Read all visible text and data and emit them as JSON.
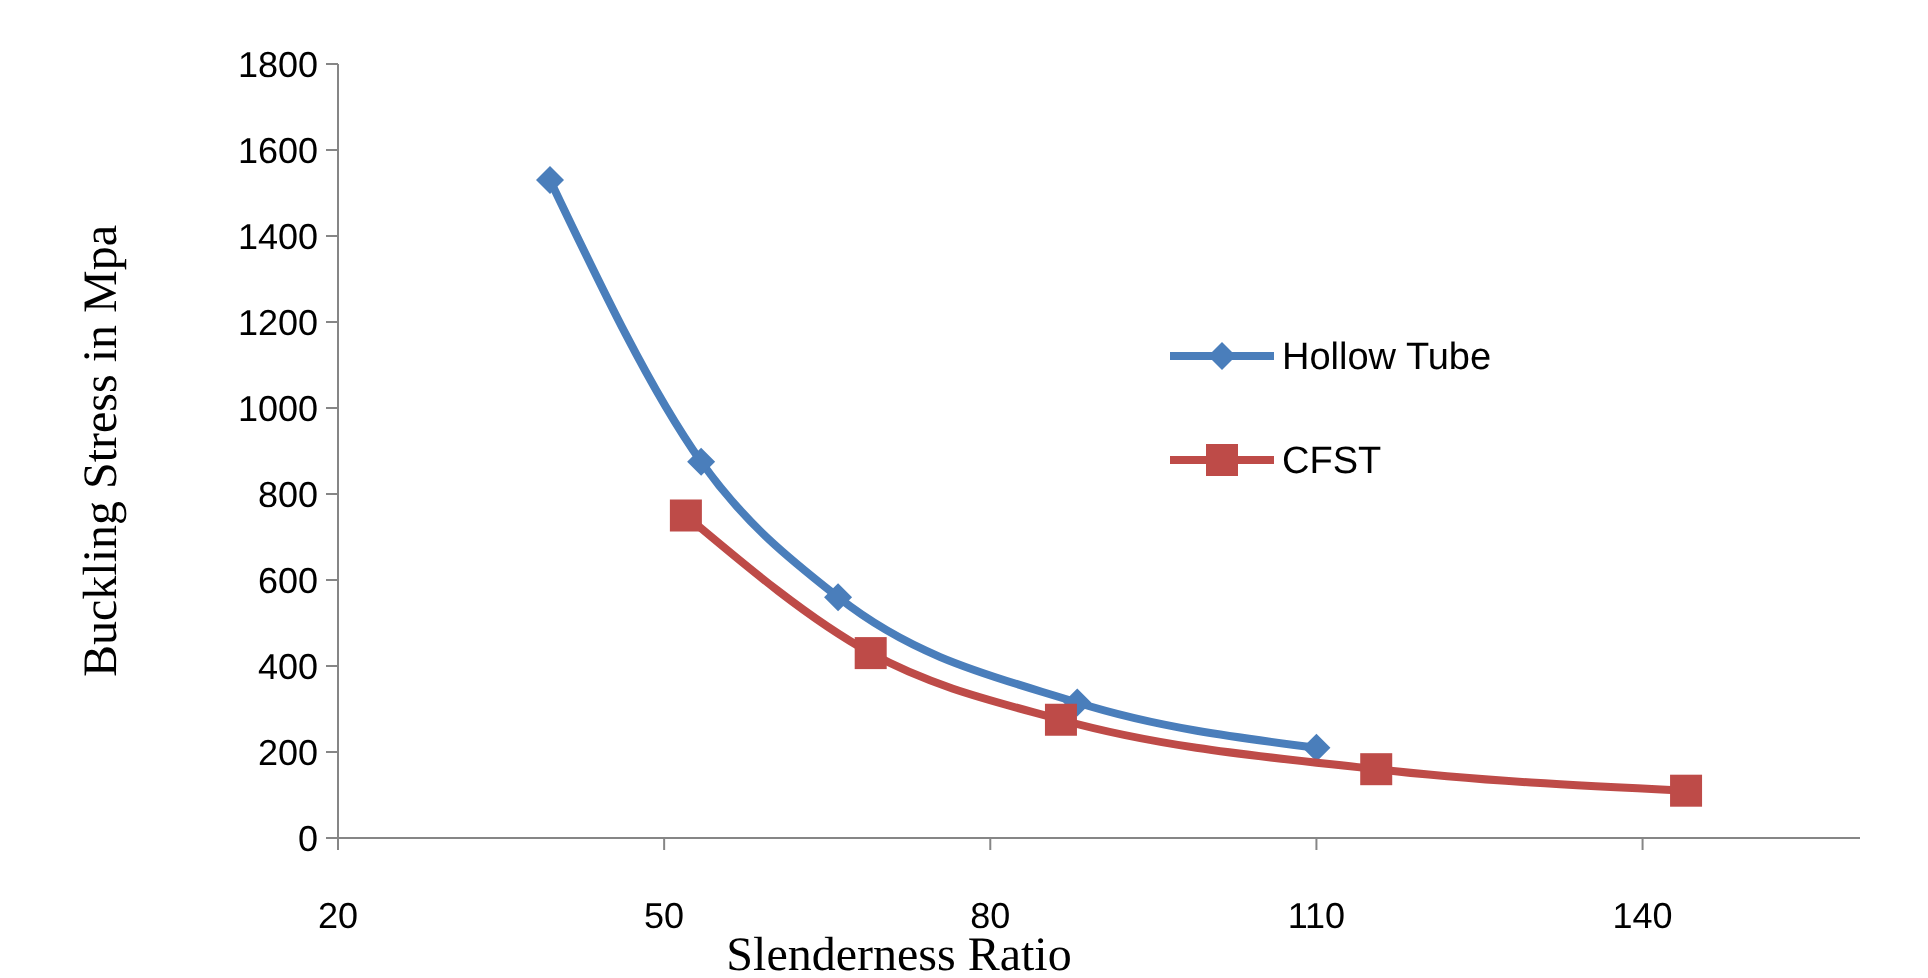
{
  "chart_data": {
    "type": "line",
    "xlabel": "Slenderness Ratio",
    "ylabel": "Buckling Stress in Mpa",
    "xlim": [
      20,
      160
    ],
    "xticks": [
      20,
      50,
      80,
      110,
      140
    ],
    "ylim": [
      0,
      1800
    ],
    "yticks": [
      0,
      200,
      400,
      600,
      800,
      1000,
      1200,
      1400,
      1600,
      1800
    ],
    "grid": false,
    "legend": "right",
    "series": [
      {
        "name": "Hollow Tube",
        "color": "#4a7ebb",
        "marker": "diamond",
        "x": [
          39.5,
          53.4,
          66,
          88,
          110
        ],
        "values": [
          1530,
          875,
          560,
          315,
          210
        ]
      },
      {
        "name": "CFST",
        "color": "#be4b48",
        "marker": "square",
        "x": [
          52,
          69,
          86.5,
          115.5,
          144
        ],
        "values": [
          750,
          430,
          275,
          160,
          110
        ]
      }
    ]
  }
}
